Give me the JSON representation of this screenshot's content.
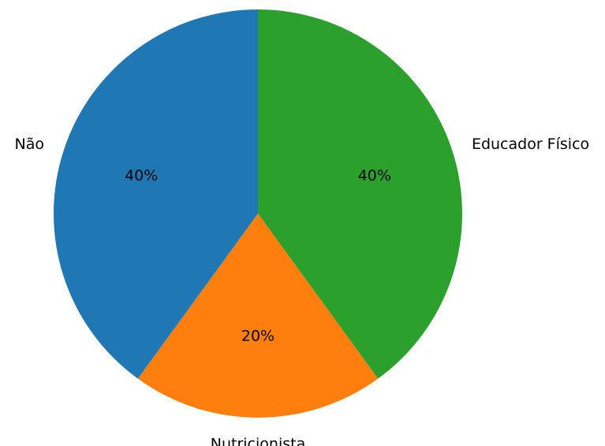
{
  "chart_data": {
    "type": "pie",
    "categories": [
      "Educador Físico",
      "Nutricionista",
      "Não"
    ],
    "values": [
      40,
      20,
      40
    ],
    "value_labels": [
      "40%",
      "20%",
      "40%"
    ],
    "colors": [
      "#2ca02c",
      "#ff7f0e",
      "#1f77b4"
    ],
    "start_angle_deg": 90,
    "direction": "clockwise",
    "legend": "none"
  }
}
